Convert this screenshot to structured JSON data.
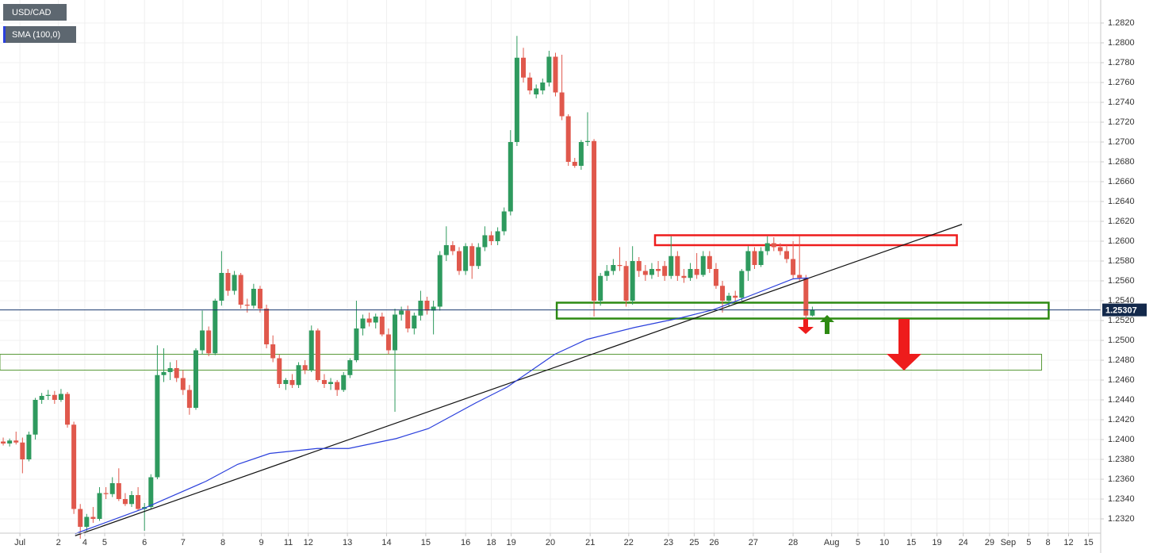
{
  "chart_data": {
    "type": "candlestick",
    "title": "USD/CAD",
    "up_color": "#2e9a5e",
    "down_color": "#e0584c",
    "grid": true,
    "candles": [
      [
        1.2398,
        1.2402,
        1.2394,
        1.2396
      ],
      [
        1.2396,
        1.2401,
        1.2393,
        1.2399
      ],
      [
        1.2399,
        1.2408,
        1.2395,
        1.2397
      ],
      [
        1.2397,
        1.2402,
        1.2366,
        1.238
      ],
      [
        1.238,
        1.2408,
        1.2378,
        1.2405
      ],
      [
        1.2405,
        1.2442,
        1.24,
        1.244
      ],
      [
        1.244,
        1.2447,
        1.2436,
        1.2444
      ],
      [
        1.2444,
        1.245,
        1.244,
        1.2445
      ],
      [
        1.2445,
        1.2449,
        1.2436,
        1.244
      ],
      [
        1.244,
        1.2451,
        1.2438,
        1.2446
      ],
      [
        1.2446,
        1.2448,
        1.2412,
        1.2415
      ],
      [
        1.2415,
        1.2418,
        1.2325,
        1.233
      ],
      [
        1.233,
        1.2335,
        1.23,
        1.2312
      ],
      [
        1.2312,
        1.2325,
        1.2308,
        1.2322
      ],
      [
        1.2322,
        1.2332,
        1.2316,
        1.232
      ],
      [
        1.232,
        1.2352,
        1.2318,
        1.2346
      ],
      [
        1.2346,
        1.2352,
        1.234,
        1.2345
      ],
      [
        1.2345,
        1.2362,
        1.2342,
        1.2356
      ],
      [
        1.2356,
        1.2371,
        1.2338,
        1.234
      ],
      [
        1.234,
        1.2346,
        1.2333,
        1.2335
      ],
      [
        1.2335,
        1.2348,
        1.2332,
        1.2344
      ],
      [
        1.2344,
        1.2352,
        1.2328,
        1.233
      ],
      [
        1.233,
        1.2336,
        1.2308,
        1.2332
      ],
      [
        1.2332,
        1.2365,
        1.233,
        1.2362
      ],
      [
        1.2362,
        1.2495,
        1.236,
        1.2465
      ],
      [
        1.2465,
        1.2492,
        1.2458,
        1.2468
      ],
      [
        1.2468,
        1.2478,
        1.246,
        1.2472
      ],
      [
        1.2472,
        1.248,
        1.2458,
        1.2462
      ],
      [
        1.2462,
        1.247,
        1.2445,
        1.245
      ],
      [
        1.245,
        1.2455,
        1.2425,
        1.2432
      ],
      [
        1.2432,
        1.2492,
        1.243,
        1.249
      ],
      [
        1.249,
        1.253,
        1.2486,
        1.251
      ],
      [
        1.251,
        1.2514,
        1.2484,
        1.2487
      ],
      [
        1.2487,
        1.2542,
        1.2485,
        1.254
      ],
      [
        1.254,
        1.259,
        1.2535,
        1.2568
      ],
      [
        1.2568,
        1.2572,
        1.2545,
        1.255
      ],
      [
        1.255,
        1.257,
        1.2546,
        1.2566
      ],
      [
        1.2566,
        1.2568,
        1.2532,
        1.2536
      ],
      [
        1.2536,
        1.2542,
        1.2528,
        1.2535
      ],
      [
        1.2535,
        1.2557,
        1.2532,
        1.2552
      ],
      [
        1.2552,
        1.2555,
        1.2528,
        1.2532
      ],
      [
        1.2532,
        1.2536,
        1.2492,
        1.2496
      ],
      [
        1.2496,
        1.2505,
        1.2478,
        1.2482
      ],
      [
        1.2482,
        1.2486,
        1.2452,
        1.2456
      ],
      [
        1.2456,
        1.2462,
        1.245,
        1.246
      ],
      [
        1.246,
        1.2466,
        1.2452,
        1.2455
      ],
      [
        1.2455,
        1.2478,
        1.2452,
        1.2475
      ],
      [
        1.2475,
        1.248,
        1.2466,
        1.247
      ],
      [
        1.247,
        1.2515,
        1.2468,
        1.251
      ],
      [
        1.251,
        1.2512,
        1.2458,
        1.246
      ],
      [
        1.246,
        1.2466,
        1.2452,
        1.2456
      ],
      [
        1.2456,
        1.2462,
        1.245,
        1.2458
      ],
      [
        1.2458,
        1.246,
        1.2444,
        1.245
      ],
      [
        1.245,
        1.2468,
        1.2448,
        1.2465
      ],
      [
        1.2465,
        1.2482,
        1.2462,
        1.248
      ],
      [
        1.248,
        1.254,
        1.2478,
        1.2512
      ],
      [
        1.2512,
        1.2526,
        1.2505,
        1.2522
      ],
      [
        1.2522,
        1.2528,
        1.2514,
        1.2518
      ],
      [
        1.2518,
        1.2527,
        1.2512,
        1.2524
      ],
      [
        1.2524,
        1.2528,
        1.2504,
        1.2506
      ],
      [
        1.2506,
        1.2512,
        1.2486,
        1.249
      ],
      [
        1.249,
        1.2532,
        1.2428,
        1.2526
      ],
      [
        1.2526,
        1.2534,
        1.252,
        1.253
      ],
      [
        1.253,
        1.2535,
        1.2508,
        1.2512
      ],
      [
        1.2512,
        1.2528,
        1.2506,
        1.2525
      ],
      [
        1.2525,
        1.255,
        1.252,
        1.254
      ],
      [
        1.254,
        1.2544,
        1.2526,
        1.253
      ],
      [
        1.253,
        1.254,
        1.2506,
        1.2534
      ],
      [
        1.2534,
        1.259,
        1.253,
        1.2586
      ],
      [
        1.2586,
        1.2615,
        1.258,
        1.2596
      ],
      [
        1.2596,
        1.26,
        1.2586,
        1.259
      ],
      [
        1.259,
        1.2594,
        1.2566,
        1.257
      ],
      [
        1.257,
        1.2598,
        1.2566,
        1.2595
      ],
      [
        1.2595,
        1.2598,
        1.2562,
        1.2575
      ],
      [
        1.2575,
        1.2598,
        1.2572,
        1.2594
      ],
      [
        1.2594,
        1.2615,
        1.259,
        1.2606
      ],
      [
        1.2606,
        1.261,
        1.2596,
        1.26
      ],
      [
        1.26,
        1.2614,
        1.2596,
        1.261
      ],
      [
        1.261,
        1.2634,
        1.2606,
        1.263
      ],
      [
        1.263,
        1.2712,
        1.2626,
        1.27
      ],
      [
        1.27,
        1.2807,
        1.2696,
        1.2785
      ],
      [
        1.2785,
        1.2795,
        1.276,
        1.2765
      ],
      [
        1.2765,
        1.277,
        1.2748,
        1.2752
      ],
      [
        1.2748,
        1.2758,
        1.2744,
        1.2754
      ],
      [
        1.2752,
        1.2764,
        1.2748,
        1.276
      ],
      [
        1.276,
        1.2792,
        1.2756,
        1.2786
      ],
      [
        1.2786,
        1.279,
        1.2746,
        1.275
      ],
      [
        1.275,
        1.2788,
        1.2722,
        1.2726
      ],
      [
        1.2726,
        1.2728,
        1.2676,
        1.268
      ],
      [
        1.268,
        1.2684,
        1.2674,
        1.2676
      ],
      [
        1.2676,
        1.2702,
        1.2672,
        1.27
      ],
      [
        1.27,
        1.273,
        1.2696,
        1.2701
      ],
      [
        1.2701,
        1.2703,
        1.2524,
        1.254
      ],
      [
        1.254,
        1.2568,
        1.2535,
        1.2565
      ],
      [
        1.2565,
        1.2576,
        1.256,
        1.257
      ],
      [
        1.257,
        1.2582,
        1.2566,
        1.2576
      ],
      [
        1.2576,
        1.2594,
        1.257,
        1.2575
      ],
      [
        1.2575,
        1.258,
        1.2534,
        1.254
      ],
      [
        1.254,
        1.2595,
        1.2536,
        1.258
      ],
      [
        1.258,
        1.2584,
        1.2564,
        1.257
      ],
      [
        1.257,
        1.2576,
        1.256,
        1.2566
      ],
      [
        1.2566,
        1.2578,
        1.2562,
        1.2572
      ],
      [
        1.2572,
        1.258,
        1.2564,
        1.257
      ],
      [
        1.2575,
        1.258,
        1.256,
        1.2565
      ],
      [
        1.2565,
        1.2605,
        1.2562,
        1.2585
      ],
      [
        1.2585,
        1.259,
        1.256,
        1.2565
      ],
      [
        1.2565,
        1.2572,
        1.2558,
        1.2563
      ],
      [
        1.2563,
        1.2578,
        1.256,
        1.2572
      ],
      [
        1.2572,
        1.2588,
        1.2562,
        1.2566
      ],
      [
        1.2566,
        1.259,
        1.2564,
        1.2585
      ],
      [
        1.2585,
        1.259,
        1.2568,
        1.2572
      ],
      [
        1.2572,
        1.2578,
        1.2552,
        1.2555
      ],
      [
        1.2555,
        1.256,
        1.2528,
        1.254
      ],
      [
        1.254,
        1.2548,
        1.2534,
        1.2545
      ],
      [
        1.2545,
        1.255,
        1.2538,
        1.2543
      ],
      [
        1.2543,
        1.2572,
        1.254,
        1.257
      ],
      [
        1.257,
        1.2595,
        1.256,
        1.259
      ],
      [
        1.259,
        1.2594,
        1.2572,
        1.2576
      ],
      [
        1.2576,
        1.2594,
        1.2574,
        1.259
      ],
      [
        1.259,
        1.2605,
        1.2586,
        1.2598
      ],
      [
        1.2598,
        1.2604,
        1.259,
        1.2594
      ],
      [
        1.2594,
        1.2598,
        1.2586,
        1.259
      ],
      [
        1.259,
        1.2596,
        1.2578,
        1.2582
      ],
      [
        1.2582,
        1.26,
        1.2562,
        1.2566
      ],
      [
        1.2566,
        1.2605,
        1.256,
        1.2563
      ],
      [
        1.2563,
        1.2566,
        1.252,
        1.2525
      ],
      [
        1.2525,
        1.2534,
        1.2524,
        1.2531
      ]
    ],
    "indicator": {
      "name": "SMA (100,0)",
      "color": "#2a3fdc",
      "x": [
        11.7,
        22.2,
        32.1,
        37.0,
        42.0,
        49.4,
        54.3,
        61.7,
        66.7,
        74.1,
        79.0,
        86.4,
        91.4,
        98.8,
        106.2,
        111.1,
        116.0,
        123.5,
        125.9
      ],
      "values": [
        1.2305,
        1.233,
        1.2358,
        1.2375,
        1.2386,
        1.2391,
        1.2391,
        1.2401,
        1.2411,
        1.2437,
        1.2453,
        1.2486,
        1.2501,
        1.2513,
        1.2523,
        1.2531,
        1.2543,
        1.2562,
        1.2563
      ]
    },
    "trendline": {
      "color": "#111111",
      "x": [
        11.7,
        149.8
      ],
      "values": [
        1.2303,
        1.2617
      ]
    },
    "zones": [
      {
        "color": "#ee1c1c",
        "x": [
          102.0,
          149.0
        ],
        "y": [
          1.2596,
          1.2606
        ]
      },
      {
        "color": "#2d8a12",
        "x": [
          86.7,
          163.3
        ],
        "y": [
          1.2522,
          1.2538
        ]
      },
      {
        "color": "#5a9a3a",
        "x": [
          0,
          162.2
        ],
        "y": [
          1.247,
          1.2486
        ]
      }
    ],
    "last_price": 1.25307,
    "xlim": [
      0,
      171.4
    ],
    "ylim": [
      1.23056,
      1.28432
    ],
    "xticks": [
      {
        "value": 3.1,
        "label": "Jul"
      },
      {
        "value": 9.1,
        "label": "2"
      },
      {
        "value": 13.2,
        "label": "4"
      },
      {
        "value": 16.3,
        "label": "5"
      },
      {
        "value": 22.5,
        "label": "6"
      },
      {
        "value": 28.5,
        "label": "7"
      },
      {
        "value": 34.7,
        "label": "8"
      },
      {
        "value": 40.7,
        "label": "9"
      },
      {
        "value": 44.9,
        "label": "11"
      },
      {
        "value": 48.0,
        "label": "12"
      },
      {
        "value": 54.1,
        "label": "13"
      },
      {
        "value": 60.2,
        "label": "14"
      },
      {
        "value": 66.3,
        "label": "15"
      },
      {
        "value": 72.5,
        "label": "16"
      },
      {
        "value": 76.5,
        "label": "18"
      },
      {
        "value": 79.6,
        "label": "19"
      },
      {
        "value": 85.7,
        "label": "20"
      },
      {
        "value": 91.9,
        "label": "21"
      },
      {
        "value": 97.9,
        "label": "22"
      },
      {
        "value": 104.1,
        "label": "23"
      },
      {
        "value": 108.1,
        "label": "25"
      },
      {
        "value": 111.2,
        "label": "26"
      },
      {
        "value": 117.3,
        "label": "27"
      },
      {
        "value": 123.5,
        "label": "28"
      },
      {
        "value": 129.5,
        "label": "Aug"
      },
      {
        "value": 133.6,
        "label": "5"
      },
      {
        "value": 137.7,
        "label": "10"
      },
      {
        "value": 141.9,
        "label": "15"
      },
      {
        "value": 145.9,
        "label": "19"
      },
      {
        "value": 150.0,
        "label": "24"
      },
      {
        "value": 154.1,
        "label": "29"
      },
      {
        "value": 157.0,
        "label": "Sep"
      },
      {
        "value": 160.2,
        "label": "5"
      },
      {
        "value": 163.2,
        "label": "8"
      },
      {
        "value": 166.4,
        "label": "12"
      },
      {
        "value": 169.5,
        "label": "15"
      }
    ],
    "yticks": [
      {
        "value": 1.232,
        "label": "1.2320"
      },
      {
        "value": 1.234,
        "label": "1.2340"
      },
      {
        "value": 1.236,
        "label": "1.2360"
      },
      {
        "value": 1.238,
        "label": "1.2380"
      },
      {
        "value": 1.24,
        "label": "1.2400"
      },
      {
        "value": 1.242,
        "label": "1.2420"
      },
      {
        "value": 1.244,
        "label": "1.2440"
      },
      {
        "value": 1.246,
        "label": "1.2460"
      },
      {
        "value": 1.248,
        "label": "1.2480"
      },
      {
        "value": 1.25,
        "label": "1.2500"
      },
      {
        "value": 1.252,
        "label": "1.2520"
      },
      {
        "value": 1.254,
        "label": "1.2540"
      },
      {
        "value": 1.256,
        "label": "1.2560"
      },
      {
        "value": 1.258,
        "label": "1.2580"
      },
      {
        "value": 1.26,
        "label": "1.2600"
      },
      {
        "value": 1.262,
        "label": "1.2620"
      },
      {
        "value": 1.264,
        "label": "1.2640"
      },
      {
        "value": 1.266,
        "label": "1.2660"
      },
      {
        "value": 1.268,
        "label": "1.2680"
      },
      {
        "value": 1.27,
        "label": "1.2700"
      },
      {
        "value": 1.272,
        "label": "1.2720"
      },
      {
        "value": 1.274,
        "label": "1.2740"
      },
      {
        "value": 1.276,
        "label": "1.2760"
      },
      {
        "value": 1.278,
        "label": "1.2780"
      },
      {
        "value": 1.28,
        "label": "1.2800"
      },
      {
        "value": 1.282,
        "label": "1.2820"
      }
    ]
  }
}
